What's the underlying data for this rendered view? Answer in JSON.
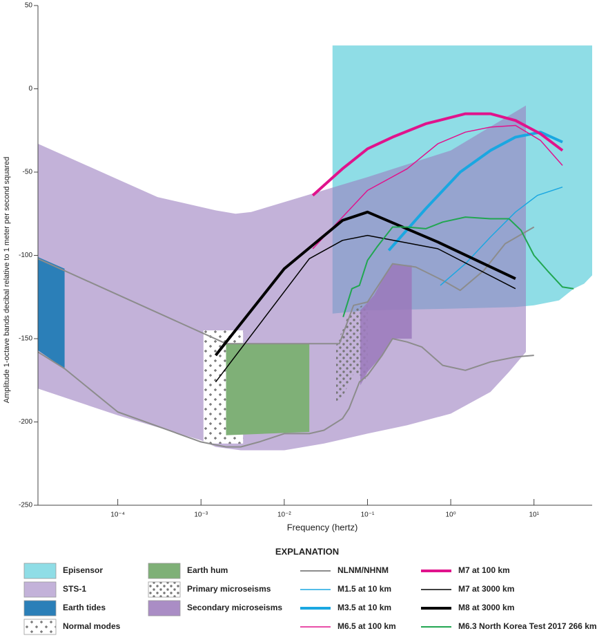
{
  "chart_data": {
    "type": "line",
    "x_label": "Frequency (hertz)",
    "y_label": "Amplitude 1-octave bands decibal relative to 1 meter per second squared",
    "legend_title": "EXPLANATION",
    "xlim": [
      1.1e-05,
      50
    ],
    "ylim": [
      -250,
      50
    ],
    "log_x": true,
    "xticks": [
      {
        "value": 0.0001,
        "label": "10⁻⁴"
      },
      {
        "value": 0.001,
        "label": "10⁻³"
      },
      {
        "value": 0.01,
        "label": "10⁻²"
      },
      {
        "value": 0.1,
        "label": "10⁻¹"
      },
      {
        "value": 1,
        "label": "10⁰"
      },
      {
        "value": 10,
        "label": "10¹"
      }
    ],
    "yticks": [
      50,
      0,
      -50,
      -100,
      -150,
      -200,
      -250
    ],
    "series": [
      {
        "name": "Episensor",
        "kind": "area",
        "color": "#8fdde6",
        "opacity": 1,
        "paths": [
          {
            "x": [
              0.038,
              50,
              50,
              40,
              30,
              20,
              10,
              6,
              1,
              0.1,
              0.038
            ],
            "values": [
              26,
              26,
              -112,
              -117,
              -120,
              -127,
              -130,
              -131,
              -132,
              -133,
              -135
            ]
          }
        ]
      },
      {
        "name": "STS-1",
        "kind": "area",
        "color": "#9b7fc0",
        "opacity": 0.6,
        "paths": [
          {
            "x": [
              1.1e-05,
              0.0003,
              0.0015,
              0.0026,
              0.004,
              0.01,
              0.1,
              1,
              8,
              8,
              5,
              3,
              1,
              0.3,
              0.1,
              0.03,
              0.01,
              0.003,
              0.0015,
              0.001,
              0.0001,
              1.1e-05
            ],
            "values": [
              -33,
              -65,
              -73,
              -75,
              -74,
              -68,
              -53,
              -37,
              -10,
              -158,
              -170,
              -182,
              -195,
              -202,
              -207,
              -213,
              -217,
              -217,
              -215,
              -211,
              -196,
              -180
            ]
          }
        ]
      },
      {
        "name": "Earth tides",
        "kind": "area",
        "color": "#2b7fb8",
        "opacity": 1,
        "paths": [
          {
            "x": [
              1.1e-05,
              2.3e-05,
              2.3e-05,
              1.1e-05
            ],
            "values": [
              -101,
              -108,
              -168,
              -157
            ]
          }
        ]
      },
      {
        "name": "Normal modes",
        "kind": "area",
        "color": "#666666",
        "pattern": "plus",
        "opacity": 1,
        "paths": [
          {
            "x": [
              0.00107,
              0.0032,
              0.0032,
              0.00107
            ],
            "values": [
              -145,
              -145,
              -213,
              -213
            ]
          }
        ]
      },
      {
        "name": "Earth hum",
        "kind": "area",
        "color": "#7fb077",
        "opacity": 1,
        "paths": [
          {
            "x": [
              0.002,
              0.02,
              0.02,
              0.002
            ],
            "values": [
              -153,
              -153,
              -206,
              -208
            ]
          }
        ]
      },
      {
        "name": "Primary microseisms",
        "kind": "area",
        "color": "#777777",
        "pattern": "dots",
        "opacity": 1,
        "paths": [
          {
            "x": [
              0.042,
              0.06,
              0.1,
              0.1,
              0.07,
              0.05,
              0.042
            ],
            "values": [
              -154,
              -135,
              -128,
              -175,
              -170,
              -185,
              -190
            ]
          }
        ]
      },
      {
        "name": "Secondary microseisms",
        "kind": "area",
        "color": "#9b79bb",
        "opacity": 0.85,
        "paths": [
          {
            "x": [
              0.082,
              0.12,
              0.17,
              0.2,
              0.34,
              0.34,
              0.2,
              0.15,
              0.1,
              0.082
            ],
            "values": [
              -133,
              -124,
              -110,
              -105,
              -106,
              -150,
              -150,
              -160,
              -170,
              -178
            ]
          }
        ]
      },
      {
        "name": "NLNM/NHNM",
        "kind": "line",
        "color": "#8c8c8c",
        "width": 2,
        "paths": [
          {
            "x": [
              1.1e-05,
              0.002,
              0.046,
              0.068,
              0.1,
              0.2,
              0.38,
              0.8,
              1.3,
              2.5,
              4.5,
              10
            ],
            "values": [
              -102,
              -153,
              -153,
              -130,
              -128,
              -105,
              -107,
              -115,
              -121,
              -109,
              -93,
              -83
            ]
          },
          {
            "x": [
              1.1e-05,
              2.3e-05,
              0.0001,
              0.001,
              0.002,
              0.003,
              0.005,
              0.01,
              0.02,
              0.03,
              0.05,
              0.06,
              0.08,
              0.1,
              0.15,
              0.2,
              0.3,
              0.45,
              0.8,
              1.5,
              3,
              6,
              10
            ],
            "values": [
              -158,
              -168,
              -194,
              -212,
              -215,
              -215,
              -212,
              -207,
              -207,
              -205,
              -198,
              -192,
              -176,
              -172,
              -160,
              -150,
              -152,
              -155,
              -166,
              -169,
              -164,
              -161,
              -160
            ]
          }
        ]
      },
      {
        "name": "M1.5 at 10 km",
        "kind": "line",
        "color": "#1aa7e1",
        "width": 1.5,
        "paths": [
          {
            "x": [
              0.75,
              1.5,
              3,
              6,
              11,
              22
            ],
            "values": [
              -118,
              -105,
              -89,
              -74,
              -64,
              -59
            ]
          }
        ]
      },
      {
        "name": "M3.5 at 10 km",
        "kind": "line",
        "color": "#1aa7e1",
        "width": 4,
        "paths": [
          {
            "x": [
              0.18,
              0.5,
              1.3,
              3,
              6,
              12,
              22
            ],
            "values": [
              -97,
              -72,
              -50,
              -37,
              -29,
              -26,
              -32
            ]
          }
        ]
      },
      {
        "name": "M6.5 at 100 km",
        "kind": "line",
        "color": "#e0138c",
        "width": 1.5,
        "paths": [
          {
            "x": [
              0.022,
              0.05,
              0.1,
              0.3,
              0.7,
              1.5,
              3,
              6,
              12,
              22
            ],
            "values": [
              -96,
              -77,
              -61,
              -48,
              -33,
              -26,
              -23,
              -22,
              -31,
              -46
            ]
          }
        ]
      },
      {
        "name": "M7 at 100 km",
        "kind": "line",
        "color": "#e0138c",
        "width": 4,
        "paths": [
          {
            "x": [
              0.022,
              0.05,
              0.1,
              0.2,
              0.5,
              1.5,
              3,
              6,
              12,
              22
            ],
            "values": [
              -64,
              -48,
              -36,
              -29,
              -21,
              -15,
              -15,
              -19,
              -27,
              -37
            ]
          }
        ]
      },
      {
        "name": "M7 at 3000 km",
        "kind": "line",
        "color": "#000000",
        "width": 1.5,
        "paths": [
          {
            "x": [
              0.0015,
              0.02,
              0.05,
              0.1,
              0.7,
              6
            ],
            "values": [
              -176,
              -102,
              -91,
              -88,
              -96,
              -120
            ]
          }
        ]
      },
      {
        "name": "M8 at 3000 km",
        "kind": "line",
        "color": "#000000",
        "width": 4,
        "paths": [
          {
            "x": [
              0.0015,
              0.01,
              0.05,
              0.1,
              0.7,
              6
            ],
            "values": [
              -160,
              -108,
              -79,
              -74,
              -92,
              -114
            ]
          }
        ]
      },
      {
        "name": "M6.3 North Korea Test 2017 266 km",
        "kind": "line",
        "color": "#21a651",
        "width": 2,
        "paths": [
          {
            "x": [
              0.051,
              0.065,
              0.08,
              0.1,
              0.13,
              0.2,
              0.3,
              0.5,
              0.8,
              1.5,
              3,
              5,
              7,
              10,
              15,
              22,
              30
            ],
            "values": [
              -137,
              -120,
              -118,
              -103,
              -95,
              -83,
              -83,
              -84,
              -80,
              -77,
              -78,
              -78,
              -85,
              -100,
              -110,
              -119,
              -120
            ]
          }
        ]
      }
    ]
  }
}
